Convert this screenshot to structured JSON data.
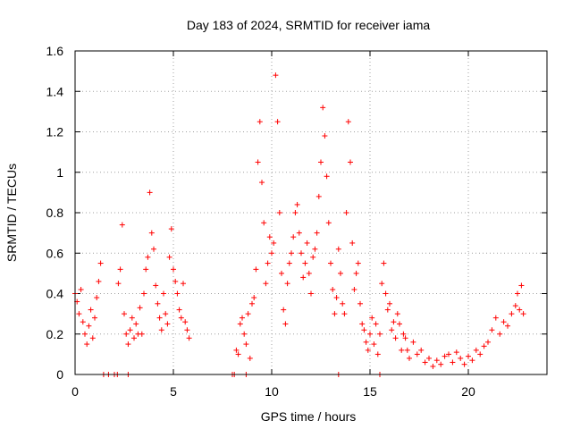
{
  "chart_data": {
    "type": "scatter",
    "title": "Day 183 of 2024, SRMTID for receiver iama",
    "xlabel": "GPS time / hours",
    "ylabel": "SRMTID / TECUs",
    "xlim": [
      0,
      24
    ],
    "ylim": [
      0,
      1.6
    ],
    "xticks": [
      0,
      5,
      10,
      15,
      20
    ],
    "xtick_labels": [
      "0",
      "5",
      "10",
      "15",
      "20"
    ],
    "yticks": [
      0,
      0.2,
      0.4,
      0.6,
      0.8,
      1,
      1.2,
      1.4,
      1.6
    ],
    "ytick_labels": [
      "0",
      "0.2",
      "0.4",
      "0.6",
      "0.8",
      "1",
      "1.2",
      "1.4",
      "1.6"
    ],
    "grid": true,
    "marker": "+",
    "color": "#ff0000",
    "series": [
      {
        "name": "SRMTID",
        "points": [
          [
            0.0,
            0.4
          ],
          [
            0.1,
            0.36
          ],
          [
            0.2,
            0.3
          ],
          [
            0.3,
            0.42
          ],
          [
            0.4,
            0.26
          ],
          [
            0.5,
            0.2
          ],
          [
            0.6,
            0.15
          ],
          [
            0.7,
            0.24
          ],
          [
            0.8,
            0.32
          ],
          [
            0.9,
            0.18
          ],
          [
            1.0,
            0.28
          ],
          [
            1.1,
            0.38
          ],
          [
            1.2,
            0.46
          ],
          [
            1.3,
            0.55
          ],
          [
            1.45,
            0.0
          ],
          [
            1.7,
            0.0
          ],
          [
            2.0,
            0.0
          ],
          [
            2.15,
            0.0
          ],
          [
            2.7,
            0.0
          ],
          [
            2.2,
            0.45
          ],
          [
            2.3,
            0.52
          ],
          [
            2.4,
            0.74
          ],
          [
            2.5,
            0.3
          ],
          [
            2.6,
            0.2
          ],
          [
            2.7,
            0.15
          ],
          [
            2.8,
            0.22
          ],
          [
            2.9,
            0.28
          ],
          [
            3.0,
            0.18
          ],
          [
            3.1,
            0.25
          ],
          [
            3.2,
            0.2
          ],
          [
            3.3,
            0.33
          ],
          [
            3.4,
            0.2
          ],
          [
            3.5,
            0.4
          ],
          [
            3.6,
            0.52
          ],
          [
            3.7,
            0.58
          ],
          [
            3.8,
            0.9
          ],
          [
            3.9,
            0.7
          ],
          [
            4.0,
            0.62
          ],
          [
            4.1,
            0.44
          ],
          [
            4.2,
            0.35
          ],
          [
            4.3,
            0.28
          ],
          [
            4.4,
            0.22
          ],
          [
            4.5,
            0.4
          ],
          [
            4.6,
            0.3
          ],
          [
            4.7,
            0.25
          ],
          [
            4.8,
            0.58
          ],
          [
            4.9,
            0.72
          ],
          [
            5.0,
            0.52
          ],
          [
            5.1,
            0.46
          ],
          [
            5.2,
            0.4
          ],
          [
            5.3,
            0.32
          ],
          [
            5.4,
            0.28
          ],
          [
            5.5,
            0.45
          ],
          [
            5.6,
            0.26
          ],
          [
            5.7,
            0.22
          ],
          [
            5.8,
            0.18
          ],
          [
            8.0,
            0.0
          ],
          [
            8.1,
            0.0
          ],
          [
            8.7,
            0.0
          ],
          [
            8.2,
            0.12
          ],
          [
            8.3,
            0.1
          ],
          [
            8.4,
            0.25
          ],
          [
            8.5,
            0.28
          ],
          [
            8.6,
            0.2
          ],
          [
            8.7,
            0.15
          ],
          [
            8.8,
            0.3
          ],
          [
            8.9,
            0.08
          ],
          [
            9.0,
            0.35
          ],
          [
            9.1,
            0.38
          ],
          [
            9.2,
            0.52
          ],
          [
            9.3,
            1.05
          ],
          [
            9.4,
            1.25
          ],
          [
            9.5,
            0.95
          ],
          [
            9.6,
            0.75
          ],
          [
            9.7,
            0.45
          ],
          [
            9.8,
            0.55
          ],
          [
            9.9,
            0.68
          ],
          [
            10.0,
            0.6
          ],
          [
            10.1,
            0.65
          ],
          [
            10.2,
            1.48
          ],
          [
            10.3,
            1.25
          ],
          [
            10.4,
            0.8
          ],
          [
            10.5,
            0.5
          ],
          [
            10.6,
            0.32
          ],
          [
            10.7,
            0.25
          ],
          [
            10.8,
            0.45
          ],
          [
            10.9,
            0.55
          ],
          [
            11.0,
            0.6
          ],
          [
            11.1,
            0.68
          ],
          [
            11.2,
            0.8
          ],
          [
            11.3,
            0.84
          ],
          [
            11.4,
            0.7
          ],
          [
            11.5,
            0.6
          ],
          [
            11.6,
            0.48
          ],
          [
            11.7,
            0.55
          ],
          [
            11.8,
            0.65
          ],
          [
            11.9,
            0.5
          ],
          [
            12.0,
            0.4
          ],
          [
            12.1,
            0.58
          ],
          [
            12.2,
            0.62
          ],
          [
            12.3,
            0.7
          ],
          [
            12.4,
            0.88
          ],
          [
            12.5,
            1.05
          ],
          [
            12.6,
            1.32
          ],
          [
            12.7,
            1.18
          ],
          [
            12.8,
            0.98
          ],
          [
            12.9,
            0.75
          ],
          [
            13.0,
            0.55
          ],
          [
            13.1,
            0.42
          ],
          [
            13.2,
            0.3
          ],
          [
            13.3,
            0.38
          ],
          [
            13.4,
            0.62
          ],
          [
            13.5,
            0.5
          ],
          [
            13.6,
            0.35
          ],
          [
            13.7,
            0.3
          ],
          [
            13.8,
            0.8
          ],
          [
            13.9,
            1.25
          ],
          [
            14.0,
            1.05
          ],
          [
            14.1,
            0.65
          ],
          [
            14.2,
            0.42
          ],
          [
            14.3,
            0.5
          ],
          [
            14.4,
            0.55
          ],
          [
            14.5,
            0.35
          ],
          [
            14.6,
            0.25
          ],
          [
            14.7,
            0.22
          ],
          [
            14.8,
            0.16
          ],
          [
            14.9,
            0.12
          ],
          [
            13.4,
            0.0
          ],
          [
            15.5,
            0.0
          ],
          [
            15.0,
            0.2
          ],
          [
            15.1,
            0.28
          ],
          [
            15.2,
            0.15
          ],
          [
            15.3,
            0.25
          ],
          [
            15.4,
            0.1
          ],
          [
            15.5,
            0.2
          ],
          [
            15.6,
            0.45
          ],
          [
            15.7,
            0.55
          ],
          [
            15.8,
            0.4
          ],
          [
            15.9,
            0.32
          ],
          [
            16.0,
            0.35
          ],
          [
            16.1,
            0.22
          ],
          [
            16.2,
            0.26
          ],
          [
            16.3,
            0.18
          ],
          [
            16.4,
            0.3
          ],
          [
            16.5,
            0.25
          ],
          [
            16.6,
            0.12
          ],
          [
            16.7,
            0.2
          ],
          [
            16.8,
            0.18
          ],
          [
            16.9,
            0.12
          ],
          [
            17.0,
            0.08
          ],
          [
            17.2,
            0.16
          ],
          [
            17.4,
            0.1
          ],
          [
            17.6,
            0.12
          ],
          [
            17.8,
            0.06
          ],
          [
            18.0,
            0.08
          ],
          [
            18.2,
            0.04
          ],
          [
            18.4,
            0.07
          ],
          [
            18.6,
            0.05
          ],
          [
            18.8,
            0.09
          ],
          [
            19.0,
            0.1
          ],
          [
            19.2,
            0.06
          ],
          [
            19.4,
            0.11
          ],
          [
            19.6,
            0.08
          ],
          [
            19.8,
            0.05
          ],
          [
            20.0,
            0.09
          ],
          [
            20.2,
            0.07
          ],
          [
            20.4,
            0.12
          ],
          [
            20.6,
            0.1
          ],
          [
            20.8,
            0.14
          ],
          [
            21.0,
            0.16
          ],
          [
            21.2,
            0.22
          ],
          [
            21.4,
            0.28
          ],
          [
            21.6,
            0.2
          ],
          [
            21.8,
            0.26
          ],
          [
            22.0,
            0.24
          ],
          [
            22.2,
            0.3
          ],
          [
            22.4,
            0.34
          ],
          [
            22.5,
            0.4
          ],
          [
            22.6,
            0.32
          ],
          [
            22.7,
            0.44
          ],
          [
            22.8,
            0.3
          ]
        ]
      }
    ]
  }
}
